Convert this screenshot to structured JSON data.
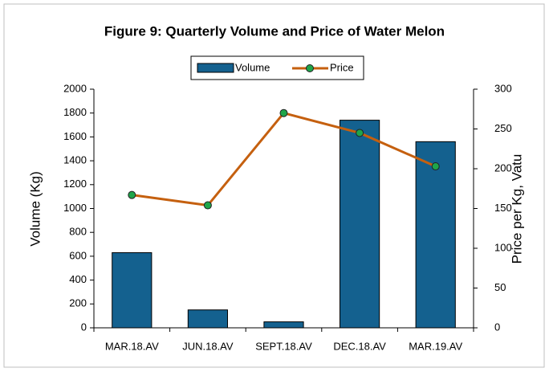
{
  "chart_data": {
    "type": "bar",
    "title": "Figure 9: Quarterly Volume and Price of Water Melon",
    "categories": [
      "MAR.18.AV",
      "JUN.18.AV",
      "SEPT.18.AV",
      "DEC.18.AV",
      "MAR.19.AV"
    ],
    "series": [
      {
        "name": "Volume",
        "type": "bar",
        "color": "#14618f",
        "values": [
          630,
          150,
          50,
          1740,
          1560
        ]
      },
      {
        "name": "Price",
        "type": "line",
        "axis": "y2",
        "color": "#c5600f",
        "marker_color": "#1fa54a",
        "values": [
          167,
          154,
          270,
          245,
          203
        ]
      }
    ],
    "y_label": "Volume (Kg)",
    "y2_label": "Price per Kg, Vatu",
    "ylim": [
      0,
      2000
    ],
    "yticks": [
      0,
      200,
      400,
      600,
      800,
      1000,
      1200,
      1400,
      1600,
      1800,
      2000
    ],
    "y2lim": [
      0,
      300
    ],
    "y2ticks": [
      0,
      50,
      100,
      150,
      200,
      250,
      300
    ],
    "legend": "top"
  }
}
